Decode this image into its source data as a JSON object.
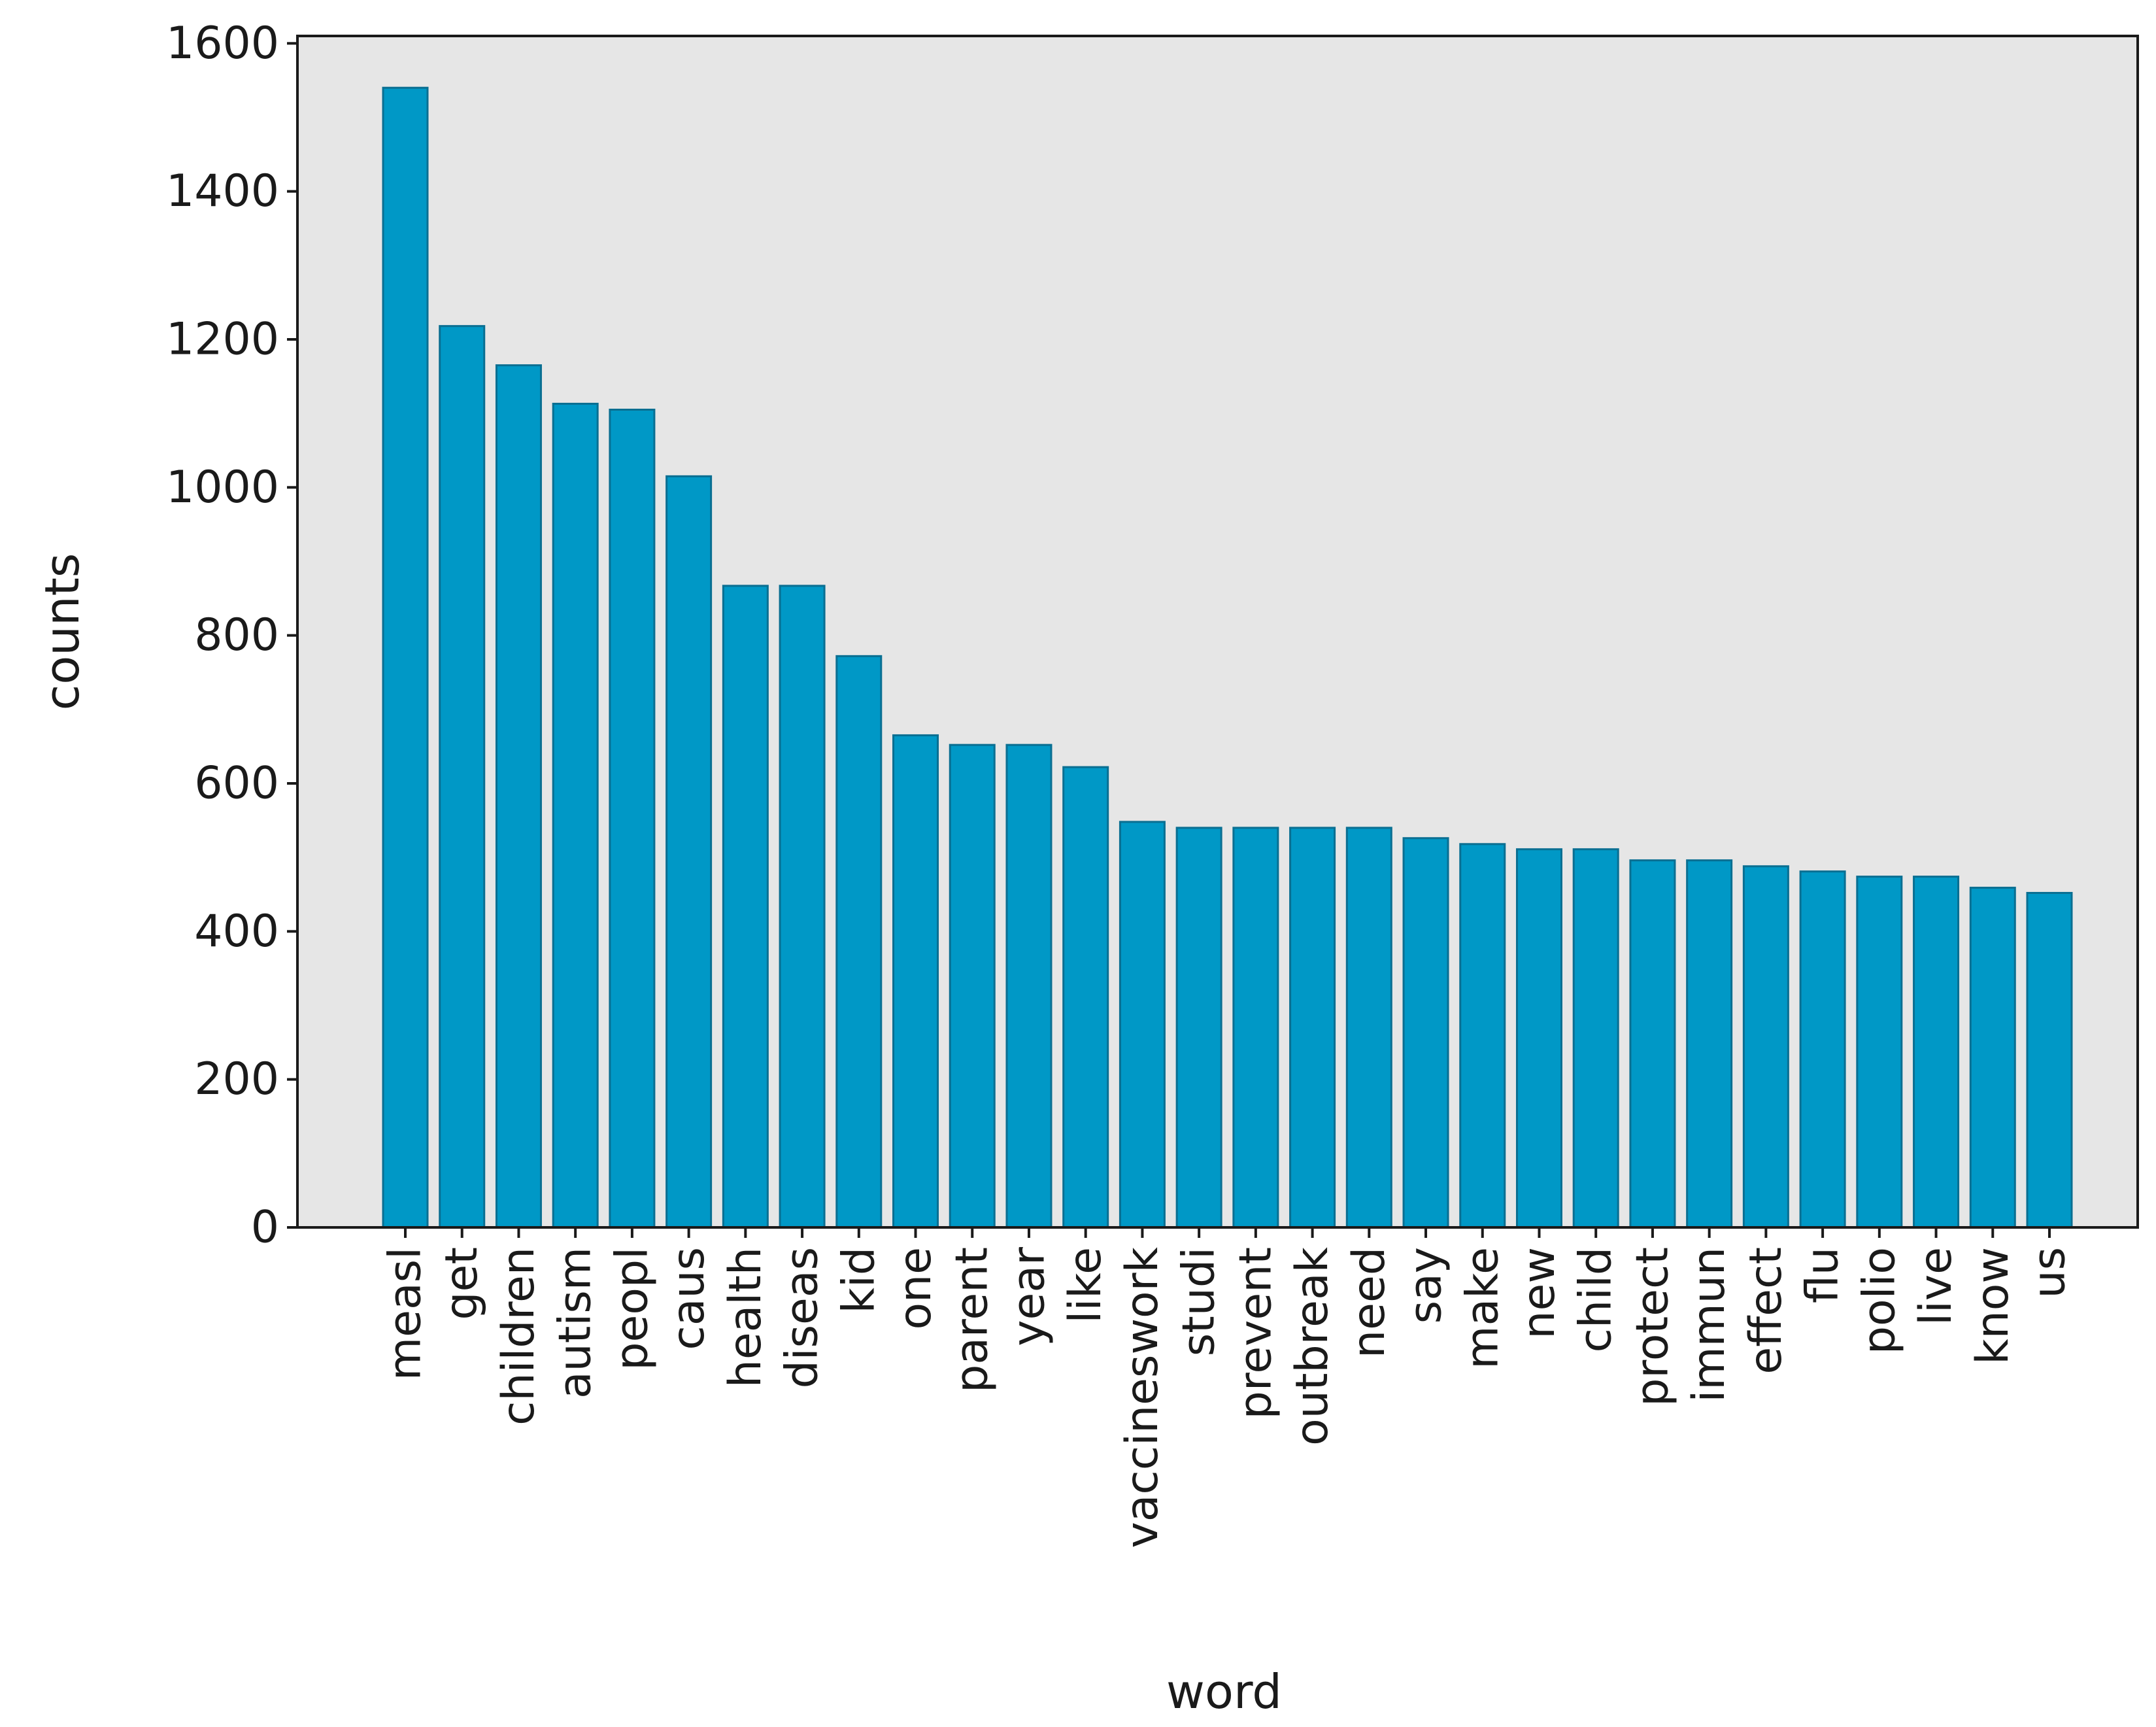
{
  "colors": {
    "bar_fill": "#0098c6",
    "bar_edge": "#0a6f92",
    "plot_background": "#e6e6e6",
    "axis": "#1a1a1a"
  },
  "chart_data": {
    "type": "bar",
    "title": "",
    "xlabel": "word",
    "ylabel": "counts",
    "ylim": [
      0,
      1610
    ],
    "yticks": [
      0,
      200,
      400,
      600,
      800,
      1000,
      1200,
      1400,
      1600
    ],
    "grid": false,
    "categories": [
      "measl",
      "get",
      "children",
      "autism",
      "peopl",
      "caus",
      "health",
      "diseas",
      "kid",
      "one",
      "parent",
      "year",
      "like",
      "vaccineswork",
      "studi",
      "prevent",
      "outbreak",
      "need",
      "say",
      "make",
      "new",
      "child",
      "protect",
      "immun",
      "effect",
      "flu",
      "polio",
      "live",
      "know",
      "us"
    ],
    "values": [
      1540,
      1218,
      1165,
      1113,
      1105,
      1015,
      867,
      867,
      772,
      665,
      652,
      652,
      622,
      548,
      540,
      540,
      540,
      540,
      526,
      518,
      511,
      511,
      496,
      496,
      488,
      481,
      474,
      474,
      459,
      452
    ]
  }
}
